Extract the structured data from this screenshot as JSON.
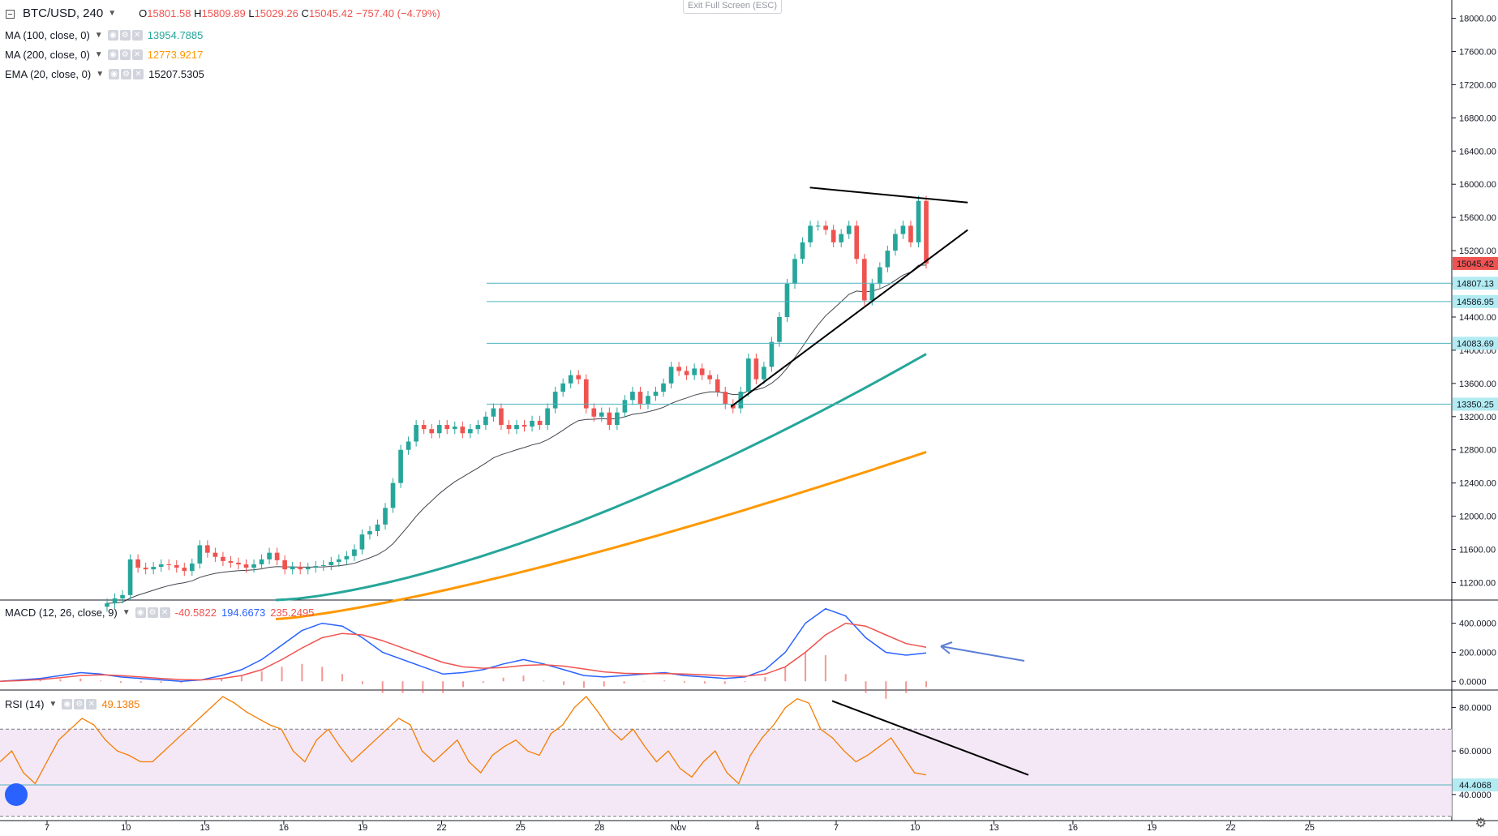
{
  "header": {
    "symbol": "BTC/USD, 240",
    "open_label": "O",
    "open": "15801.58",
    "high_label": "H",
    "high": "15809.89",
    "low_label": "L",
    "low": "15029.26",
    "close_label": "C",
    "close": "15045.42",
    "change": "−757.40 (−4.79%)",
    "exit_fullscreen": "Exit Full Screen (ESC)"
  },
  "indicators": [
    {
      "name": "MA (100, close, 0)",
      "value": "13954.7885",
      "color": "#26a69a"
    },
    {
      "name": "MA (200, close, 0)",
      "value": "12773.9217",
      "color": "#ff9800"
    },
    {
      "name": "EMA (20, close, 0)",
      "value": "15207.5305",
      "color": "#131722"
    }
  ],
  "macd_legend": {
    "name": "MACD (12, 26, close, 9)",
    "hist": "-40.5822",
    "macd": "194.6673",
    "signal": "235.2495",
    "hist_color": "#ef5350",
    "macd_color": "#2962ff",
    "signal_color": "#ef5350"
  },
  "rsi_legend": {
    "name": "RSI (14)",
    "value": "49.1385",
    "color": "#f57c00"
  },
  "price_badges": [
    {
      "value": "15045.42",
      "bg": "#ef5350",
      "fg": "#ffffff"
    },
    {
      "value": "14807.13",
      "bg": "#b2ebf2",
      "fg": "#131722"
    },
    {
      "value": "14586.95",
      "bg": "#b2ebf2",
      "fg": "#131722"
    },
    {
      "value": "14083.69",
      "bg": "#b2ebf2",
      "fg": "#131722"
    },
    {
      "value": "13350.25",
      "bg": "#b2ebf2",
      "fg": "#131722"
    }
  ],
  "rsi_badge": {
    "value": "44.4068",
    "bg": "#b2ebf2"
  },
  "chart_data": [
    {
      "type": "candlestick",
      "title": "BTC/USD, 240",
      "price_ticks": [
        "18000.00",
        "17600.00",
        "17200.00",
        "16800.00",
        "16400.00",
        "16000.00",
        "15600.00",
        "15200.00",
        "14800.00",
        "14400.00",
        "14000.00",
        "13600.00",
        "13200.00",
        "12800.00",
        "12400.00",
        "12000.00",
        "11600.00",
        "11200.00"
      ],
      "ylim": [
        10990,
        18220
      ],
      "date_ticks": [
        "7",
        "10",
        "13",
        "16",
        "19",
        "22",
        "25",
        "28",
        "Nov",
        "4",
        "7",
        "10",
        "13",
        "16",
        "19",
        "22",
        "25"
      ],
      "candle_closes": [
        10950,
        11010,
        11050,
        11480,
        11380,
        11360,
        11390,
        11420,
        11410,
        11380,
        11340,
        11430,
        11650,
        11560,
        11510,
        11460,
        11440,
        11420,
        11380,
        11420,
        11480,
        11560,
        11470,
        11360,
        11390,
        11360,
        11380,
        11400,
        11410,
        11450,
        11480,
        11520,
        11600,
        11780,
        11820,
        11900,
        12100,
        12400,
        12800,
        12900,
        13100,
        13050,
        13000,
        13100,
        13050,
        13080,
        13000,
        13050,
        13100,
        13200,
        13300,
        13100,
        13050,
        13100,
        13080,
        13150,
        13100,
        13300,
        13500,
        13600,
        13700,
        13650,
        13300,
        13200,
        13250,
        13100,
        13250,
        13400,
        13500,
        13350,
        13450,
        13500,
        13600,
        13800,
        13750,
        13700,
        13780,
        13700,
        13650,
        13500,
        13350,
        13300,
        13500,
        13900,
        13650,
        13800,
        14100,
        14400,
        14800,
        15100,
        15300,
        15500,
        15500,
        15450,
        15300,
        15400,
        15500,
        15100,
        14600,
        14800,
        15000,
        15200,
        15400,
        15500,
        15300,
        15800,
        15045
      ],
      "trend_lines": [
        {
          "from": [
            "Nov 6",
            15960
          ],
          "to": [
            "Nov 12",
            15780
          ]
        },
        {
          "from": [
            "Nov 3",
            13320
          ],
          "to": [
            "Nov 12",
            15450
          ]
        }
      ],
      "horizontal_levels": [
        14807.13,
        14586.95,
        14083.69,
        13350.25
      ],
      "series": [
        {
          "name": "MA (100, close, 0)",
          "last": 13954.7885,
          "color": "#26a69a"
        },
        {
          "name": "MA (200, close, 0)",
          "last": 12773.9217,
          "color": "#ff9800"
        },
        {
          "name": "EMA (20, close, 0)",
          "last": 15207.5305,
          "color": "#131722"
        }
      ],
      "up_color": "#26a69a",
      "down_color": "#ef5350"
    },
    {
      "type": "line",
      "title": "MACD (12, 26, close, 9)",
      "ticks": [
        "400.0000",
        "200.0000",
        "0.0000"
      ],
      "ylim": [
        -60,
        560
      ],
      "macd": [
        0,
        10,
        20,
        40,
        60,
        50,
        30,
        20,
        10,
        0,
        10,
        40,
        80,
        150,
        250,
        350,
        400,
        380,
        300,
        200,
        150,
        100,
        50,
        60,
        80,
        120,
        150,
        120,
        80,
        40,
        30,
        40,
        50,
        60,
        40,
        30,
        20,
        30,
        80,
        200,
        400,
        500,
        450,
        300,
        200,
        180,
        195
      ],
      "signal": [
        0,
        5,
        12,
        25,
        40,
        45,
        40,
        30,
        20,
        12,
        10,
        20,
        40,
        80,
        150,
        230,
        300,
        330,
        320,
        280,
        230,
        180,
        130,
        100,
        90,
        95,
        110,
        115,
        105,
        85,
        65,
        55,
        52,
        54,
        50,
        45,
        38,
        35,
        50,
        100,
        200,
        320,
        400,
        380,
        320,
        260,
        235
      ],
      "series": [
        {
          "name": "MACD",
          "value": 194.6673,
          "color": "#2962ff"
        },
        {
          "name": "Signal",
          "value": 235.2495,
          "color": "#ef5350"
        },
        {
          "name": "Histogram",
          "value": -40.5822,
          "color": "#ef5350"
        }
      ]
    },
    {
      "type": "line",
      "title": "RSI (14)",
      "ticks": [
        "80.0000",
        "60.0000",
        "40.0000"
      ],
      "ylim": [
        28,
        88
      ],
      "bands": [
        70,
        30
      ],
      "level": 44.4068,
      "values": [
        55,
        60,
        50,
        45,
        55,
        65,
        70,
        75,
        72,
        65,
        60,
        58,
        55,
        55,
        60,
        65,
        70,
        75,
        80,
        85,
        82,
        78,
        75,
        72,
        70,
        60,
        55,
        65,
        70,
        62,
        55,
        60,
        65,
        70,
        75,
        72,
        60,
        55,
        60,
        65,
        55,
        50,
        58,
        62,
        65,
        60,
        58,
        68,
        72,
        80,
        85,
        78,
        70,
        65,
        70,
        62,
        55,
        60,
        52,
        48,
        55,
        60,
        50,
        45,
        58,
        66,
        72,
        80,
        84,
        82,
        70,
        66,
        60,
        55,
        58,
        62,
        66,
        58,
        50,
        49
      ],
      "series": [
        {
          "name": "RSI (14)",
          "value": 49.1385,
          "color": "#f57c00"
        }
      ]
    }
  ]
}
